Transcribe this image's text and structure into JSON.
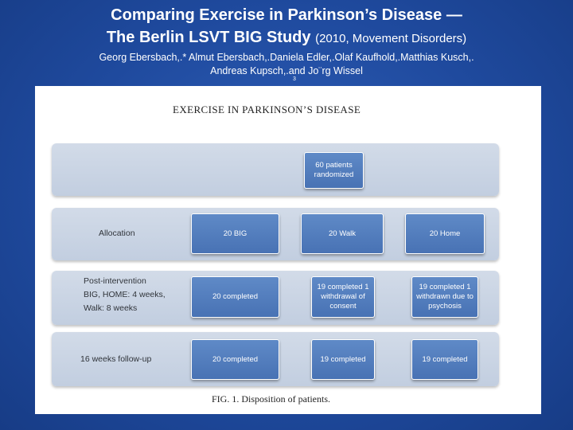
{
  "slide": {
    "title_line1": "Comparing Exercise in Parkinson’s Disease —",
    "title_line2": "The Berlin LSVT BIG Study",
    "title_year": "(2010, Movement Disorders)",
    "authors_line1": "Georg Ebersbach,.* Almut Ebersbach,.Daniela Edler,.Olaf Kaufhold,.Matthias Kusch,.",
    "authors_line2": "Andreas Kupsch,.and Jo¨rg Wissel",
    "authors_superscript": "3"
  },
  "figure": {
    "header": "EXERCISE IN PARKINSON’S DISEASE",
    "caption": "FIG. 1.  Disposition of patients.",
    "rows": [
      {
        "label": "",
        "boxes": [
          "60 patients randomized"
        ]
      },
      {
        "label": "Allocation",
        "boxes": [
          "20 BIG",
          "20 Walk",
          "20 Home"
        ]
      },
      {
        "label_lines": [
          "Post-intervention",
          "BIG, HOME: 4 weeks,",
          "Walk: 8 weeks"
        ],
        "boxes": [
          "20 completed",
          "19 completed 1 withdrawal of consent",
          "19 completed 1 withdrawn due to psychosis"
        ]
      },
      {
        "label": "16 weeks follow-up",
        "boxes": [
          "20 completed",
          "19 completed",
          "19 completed"
        ]
      }
    ]
  }
}
